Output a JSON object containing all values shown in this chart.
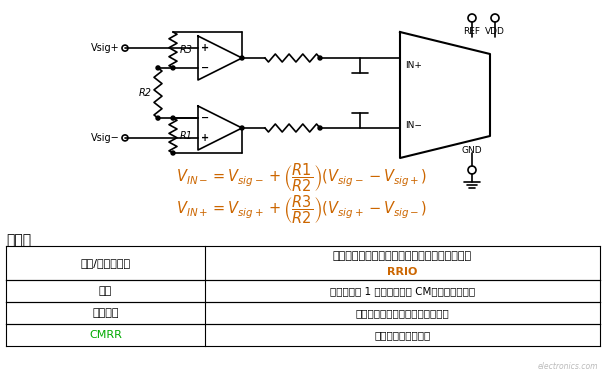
{
  "bg_color": "#ffffff",
  "eq_color": "#cc6600",
  "rrio_color": "#cc6600",
  "cmrr_color": "#00aa00",
  "section_title": "利与弊",
  "eq1_color": "#cc6600",
  "eq2_color": "#cc6600",
  "tbl_row1_col1": "裕量/单电源供电",
  "tbl_row1_col2a": "对于依赖增益的单电源工作模式，可能需要提供",
  "tbl_row1_col2b": "RRIO",
  "tbl_row2_col1": "增益",
  "tbl_row2_col2": "仅允许大于 1 的增益；固定 CM，无电平转换。",
  "tbl_row3_col1": "输入阻抗",
  "tbl_row3_col2": "受放大器输入漏电流限制的高阻抗",
  "tbl_row4_col1": "CMRR",
  "tbl_row4_col2": "共模抑制性能欠佳。",
  "watermark": "electronics.com"
}
